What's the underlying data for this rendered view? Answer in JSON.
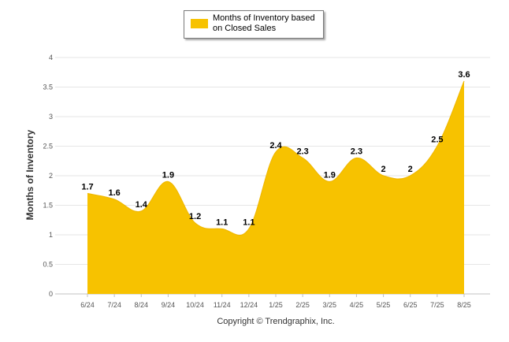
{
  "legend": {
    "label": "Months of Inventory based on Closed Sales",
    "color": "#F7C200"
  },
  "credit": "Copyright © Trendgraphix, Inc.",
  "chart_data": {
    "type": "area",
    "categories": [
      "6/24",
      "7/24",
      "8/24",
      "9/24",
      "10/24",
      "11/24",
      "12/24",
      "1/25",
      "2/25",
      "3/25",
      "4/25",
      "5/25",
      "6/25",
      "7/25",
      "8/25"
    ],
    "series": [
      {
        "name": "Months of Inventory based on Closed Sales",
        "values": [
          1.7,
          1.6,
          1.4,
          1.9,
          1.2,
          1.1,
          1.1,
          2.4,
          2.3,
          1.9,
          2.3,
          2,
          2,
          2.5,
          3.6
        ],
        "labels": [
          "1.7",
          "1.6",
          "1.4",
          "1.9",
          "1.2",
          "1.1",
          "1.1",
          "2.4",
          "2.3",
          "1.9",
          "2.3",
          "2",
          "2",
          "2.5",
          "3.6"
        ],
        "color": "#F7C200"
      }
    ],
    "ylabel": "Months of Inventory",
    "xlabel": "",
    "ylim": [
      0,
      4
    ],
    "yticks": [
      "0",
      "0.5",
      "1",
      "1.5",
      "2",
      "2.5",
      "3",
      "3.5",
      "4"
    ],
    "ytick_values": [
      0,
      0.5,
      1,
      1.5,
      2,
      2.5,
      3,
      3.5,
      4
    ],
    "grid": true,
    "legend_position": "top-center",
    "gridline_color": "#e6e6e6",
    "text_color": "#555555"
  }
}
